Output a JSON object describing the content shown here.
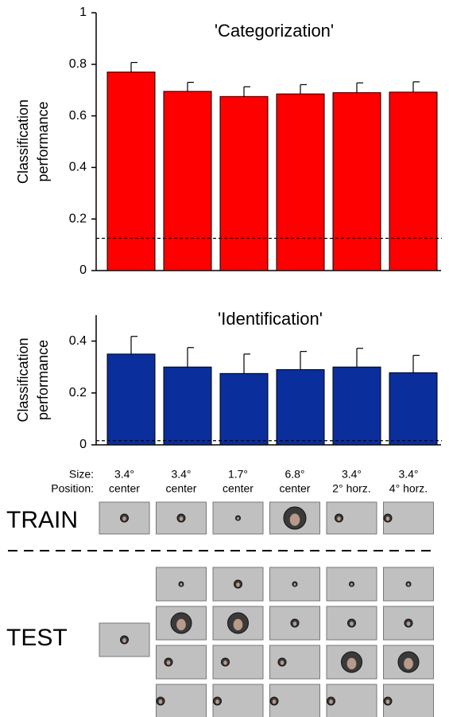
{
  "chart_data": [
    {
      "type": "bar",
      "title": "'Categorization'",
      "ylabel": [
        "Classification",
        "performance"
      ],
      "values": [
        0.77,
        0.695,
        0.675,
        0.685,
        0.69,
        0.692
      ],
      "errors": [
        0.037,
        0.035,
        0.038,
        0.036,
        0.038,
        0.04
      ],
      "color": "#ff0000",
      "chance": 0.125,
      "ylim": [
        0,
        1
      ],
      "yticks": [
        0,
        0.2,
        0.4,
        0.6,
        0.8,
        1
      ]
    },
    {
      "type": "bar",
      "title": "'Identification'",
      "ylabel": [
        "Classification",
        "performance"
      ],
      "values": [
        0.35,
        0.3,
        0.275,
        0.29,
        0.3,
        0.278
      ],
      "errors": [
        0.068,
        0.075,
        0.075,
        0.07,
        0.072,
        0.067
      ],
      "color": "#0a2f9c",
      "chance": 0.016,
      "ylim": [
        0,
        0.5
      ],
      "yticks": [
        0,
        0.2,
        0.4
      ]
    }
  ],
  "conditions": {
    "size_label": "Size:",
    "position_label": "Position:",
    "sizes": [
      "3.4°",
      "3.4°",
      "1.7°",
      "6.8°",
      "3.4°",
      "3.4°"
    ],
    "positions": [
      "center",
      "center",
      "center",
      "center",
      "2° horz.",
      "4° horz."
    ]
  },
  "train_label": "TRAIN",
  "test_label": "TEST"
}
